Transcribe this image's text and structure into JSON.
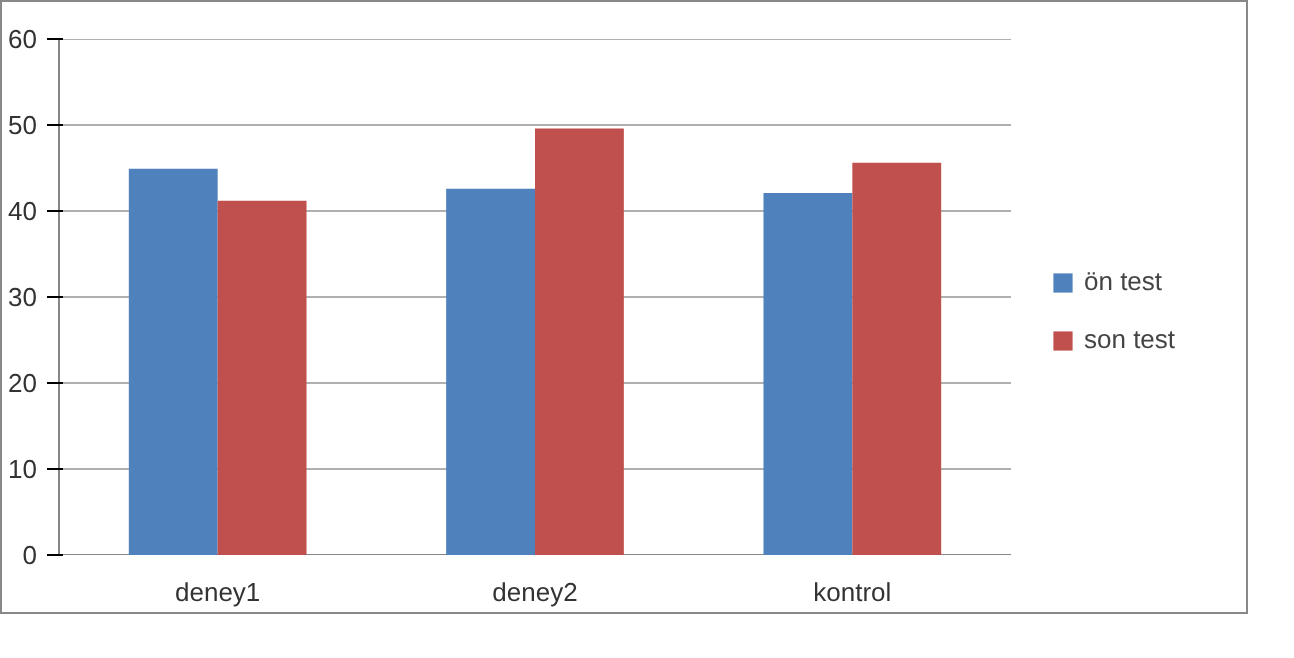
{
  "chart_data": {
    "type": "bar",
    "categories": [
      "deney1",
      "deney2",
      "kontrol"
    ],
    "series": [
      {
        "name": "ön test",
        "color": "#4f81bd",
        "values": [
          44.9,
          42.6,
          42.1
        ]
      },
      {
        "name": "son test",
        "color": "#c0504d",
        "values": [
          41.2,
          49.6,
          45.6
        ]
      }
    ],
    "ylim": [
      0,
      60
    ],
    "yticks": [
      0,
      10,
      20,
      30,
      40,
      50,
      60
    ],
    "grid": "y",
    "legend": "right"
  }
}
